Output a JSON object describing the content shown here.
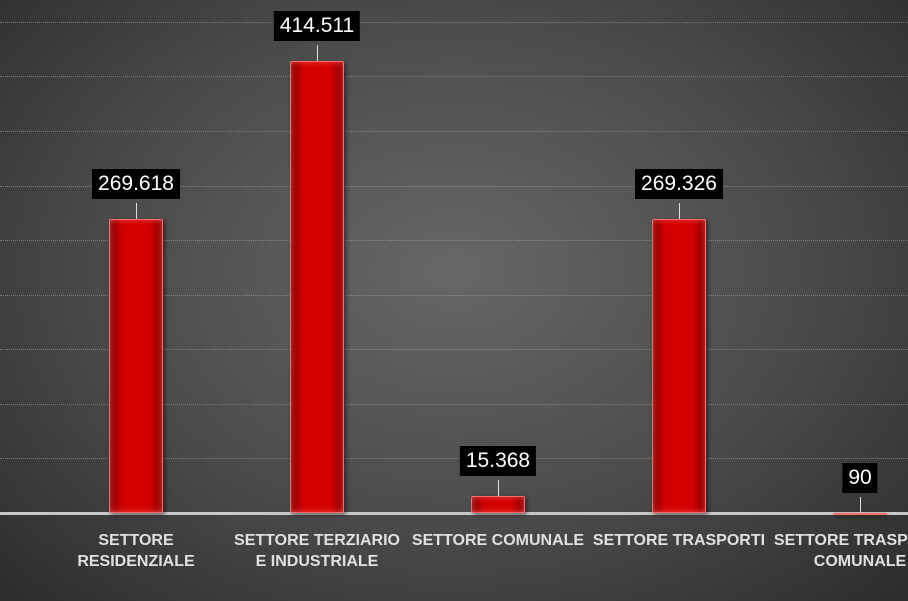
{
  "chart_data": {
    "type": "bar",
    "categories": [
      "SETTORE RESIDENZIALE",
      "SETTORE TERZIARIO E INDUSTRIALE",
      "SETTORE COMUNALE",
      "SETTORE TRASPORTI",
      "SETTORE TRASPORTI COMUNALE"
    ],
    "values": [
      269618,
      414511,
      15368,
      269326,
      90
    ],
    "value_labels": [
      "269.618",
      "414.511",
      "15.368",
      "269.326",
      "90"
    ],
    "color": "#d40000",
    "ylim": [
      0,
      470000
    ],
    "yticks": [
      0,
      50000,
      100000,
      150000,
      200000,
      250000,
      300000,
      350000,
      400000,
      450000
    ],
    "grid": true
  }
}
